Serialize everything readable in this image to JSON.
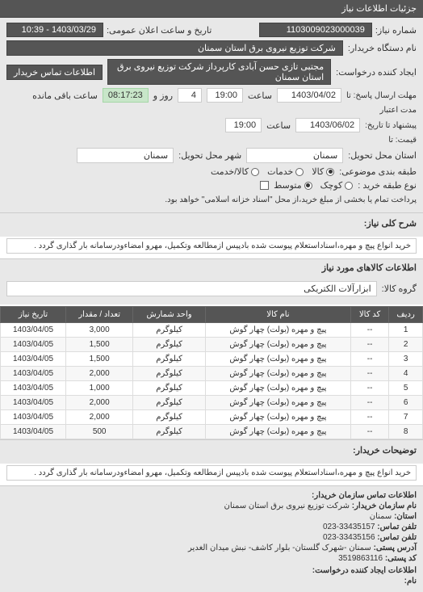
{
  "panel_title": "جزئیات اطلاعات نیاز",
  "fields": {
    "number_label": "شماره نیاز:",
    "number_value": "1103009023000039",
    "datetime_label": "تاریخ و ساعت اعلان عمومی:",
    "datetime_value": "1403/03/29 - 10:39",
    "buyer_label": "نام دستگاه خریدار:",
    "buyer_value": "شرکت توزیع نیروی برق استان سمنان",
    "requester_label": "ایجاد کننده درخواست:",
    "requester_value": "مجتبی تازی حسن آبادی کارپرداز شرکت توزیع نیروی برق استان سمنان",
    "contact_btn": "اطلاعات تماس خریدار",
    "deadline_label": "مهلت ارسال پاسخ: تا",
    "deadline_date": "1403/04/02",
    "time_label": "ساعت",
    "deadline_time": "19:00",
    "days_remaining": "4",
    "days_remaining_label": "روز و",
    "time_remaining": "08:17:23",
    "remaining_label": "ساعت باقی مانده",
    "validity_label": "مدت اعتبار",
    "validity_until_label": "پیشنهاد تا تاریخ:",
    "validity_date": "1403/06/02",
    "validity_time": "19:00",
    "price_label": "قیمت: تا",
    "delivery_province_label": "استان محل تحویل:",
    "delivery_province": "سمنان",
    "delivery_city_label": "شهر محل تحویل:",
    "delivery_city": "سمنان",
    "classification_label": "طبقه بندی موضوعی:",
    "radio_kala": "کالا",
    "radio_khadamat": "خدمات",
    "radio_kala_khadamat": "کالا/خدمت",
    "buy_type_label": "نوع طبقه خرید :",
    "radio_small": "کوچک",
    "radio_medium": "متوسط",
    "payment_note": "پرداخت تمام یا بخشی از مبلغ خرید،از محل \"اسناد خزانه اسلامی\" خواهد بود.",
    "title_label": "شرح کلی نیاز:",
    "title_value": "خرید انواع پیچ و مهره،اسناداستعلام پیوست شده بادپیس ازمطالعه وتکمیل، مهرو امضاءودرسامانه بار گذاری گردد .",
    "goods_section": "اطلاعات کالاهای مورد نیاز",
    "group_label": "گروه کالا:",
    "group_value": "ابزارآلات الکتریکی",
    "buyer_notes_label": "توضیحات خریدار:",
    "buyer_notes_value": "خرید انواع پیچ و مهره،اسناداستعلام پیوست شده بادپیس ازمطالعه وتکمیل، مهرو امضاءودرسامانه بار گذاری گردد ."
  },
  "table": {
    "headers": {
      "row": "ردیف",
      "code": "کد کالا",
      "name": "نام کالا",
      "unit": "واحد شمارش",
      "qty": "تعداد / مقدار",
      "date": "تاریخ نیاز"
    },
    "rows": [
      {
        "n": "1",
        "code": "--",
        "name": "پیچ و مهره (بولت) چهار گوش",
        "unit": "کیلوگرم",
        "qty": "3,000",
        "date": "1403/04/05"
      },
      {
        "n": "2",
        "code": "--",
        "name": "پیچ و مهره (بولت) چهار گوش",
        "unit": "کیلوگرم",
        "qty": "1,500",
        "date": "1403/04/05"
      },
      {
        "n": "3",
        "code": "--",
        "name": "پیچ و مهره (بولت) چهار گوش",
        "unit": "کیلوگرم",
        "qty": "1,500",
        "date": "1403/04/05"
      },
      {
        "n": "4",
        "code": "--",
        "name": "پیچ و مهره (بولت) چهار گوش",
        "unit": "کیلوگرم",
        "qty": "2,000",
        "date": "1403/04/05"
      },
      {
        "n": "5",
        "code": "--",
        "name": "پیچ و مهره (بولت) چهار گوش",
        "unit": "کیلوگرم",
        "qty": "1,000",
        "date": "1403/04/05"
      },
      {
        "n": "6",
        "code": "--",
        "name": "پیچ و مهره (بولت) چهار گوش",
        "unit": "کیلوگرم",
        "qty": "2,000",
        "date": "1403/04/05"
      },
      {
        "n": "7",
        "code": "--",
        "name": "پیچ و مهره (بولت) چهار گوش",
        "unit": "کیلوگرم",
        "qty": "2,000",
        "date": "1403/04/05"
      },
      {
        "n": "8",
        "code": "--",
        "name": "پیچ و مهره (بولت) چهار گوش",
        "unit": "کیلوگرم",
        "qty": "500",
        "date": "1403/04/05"
      }
    ]
  },
  "watermarks": {
    "w1": "پایگاه خبرگزاری مناقصات ایران",
    "w2": "۸۸۳۴…"
  },
  "contact": {
    "section_title": "اطلاعات تماس سازمان خریدار:",
    "org_label": "نام سازمان خریدار:",
    "org_value": "شرکت توزیع نیروی برق استان سمنان",
    "province_label": "استان:",
    "province_value": "سمنان",
    "phone_label": "تلفن تماس:",
    "phone_value": "33435157-023",
    "fax_label": "تلفن تماس:",
    "fax_value": "33435156-023",
    "address_label": "آدرس پستی:",
    "address_value": "سمنان -شهرک گلستان- بلوار کاشف- نبش میدان الغدیر",
    "postal_label": "کد پستی:",
    "postal_value": "3519863116",
    "req_contact_label": "اطلاعات ایجاد کننده درخواست:",
    "name_label": "نام:"
  },
  "colors": {
    "header_bg": "#555555",
    "header_fg": "#ffffff",
    "section_bg": "#e8e8e8",
    "highlight_bg": "#c8e6c9",
    "border": "#cccccc"
  }
}
